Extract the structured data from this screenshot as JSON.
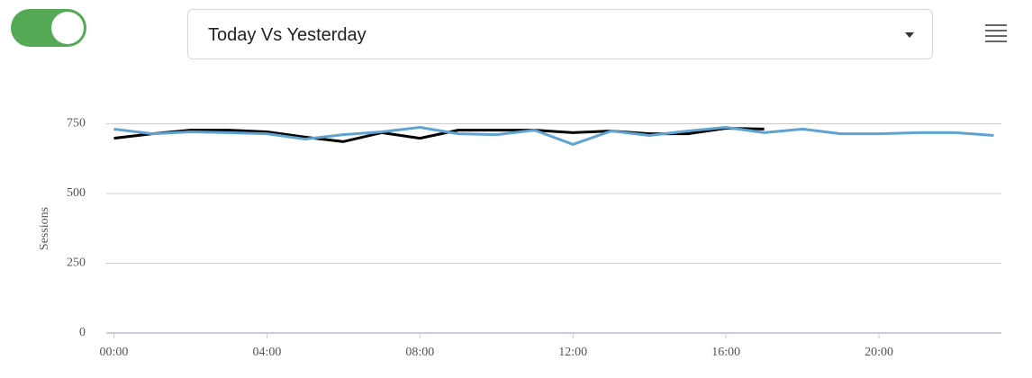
{
  "ui": {
    "dropdown": "Today Vs Yesterday"
  },
  "chart_data": {
    "type": "line",
    "y_label": "Sessions",
    "x": [
      0,
      1,
      2,
      3,
      4,
      5,
      6,
      7,
      8,
      9,
      10,
      11,
      12,
      13,
      14,
      15,
      16,
      17,
      18,
      19,
      20,
      21,
      22,
      23
    ],
    "series": [
      {
        "color": "#000000",
        "values": [
          698,
          714,
          727,
          727,
          721,
          702,
          686,
          718,
          698,
          727,
          727,
          727,
          718,
          724,
          714,
          714,
          734,
          731,
          null,
          null,
          null,
          null,
          null,
          null
        ]
      },
      {
        "color": "#5fa3d0",
        "values": [
          731,
          714,
          721,
          718,
          714,
          695,
          711,
          721,
          737,
          714,
          711,
          727,
          676,
          724,
          708,
          724,
          737,
          718,
          731,
          714,
          714,
          718,
          718,
          708
        ]
      }
    ],
    "xlim": [
      -0.2,
      23.2
    ],
    "xticks": [
      {
        "value": 0,
        "label": "00:00"
      },
      {
        "value": 4,
        "label": "04:00"
      },
      {
        "value": 8,
        "label": "08:00"
      },
      {
        "value": 12,
        "label": "12:00"
      },
      {
        "value": 16,
        "label": "16:00"
      },
      {
        "value": 20,
        "label": "20:00"
      }
    ],
    "ylim": [
      0,
      750
    ],
    "yticks": [
      0,
      250,
      500,
      750
    ],
    "grid": true
  }
}
